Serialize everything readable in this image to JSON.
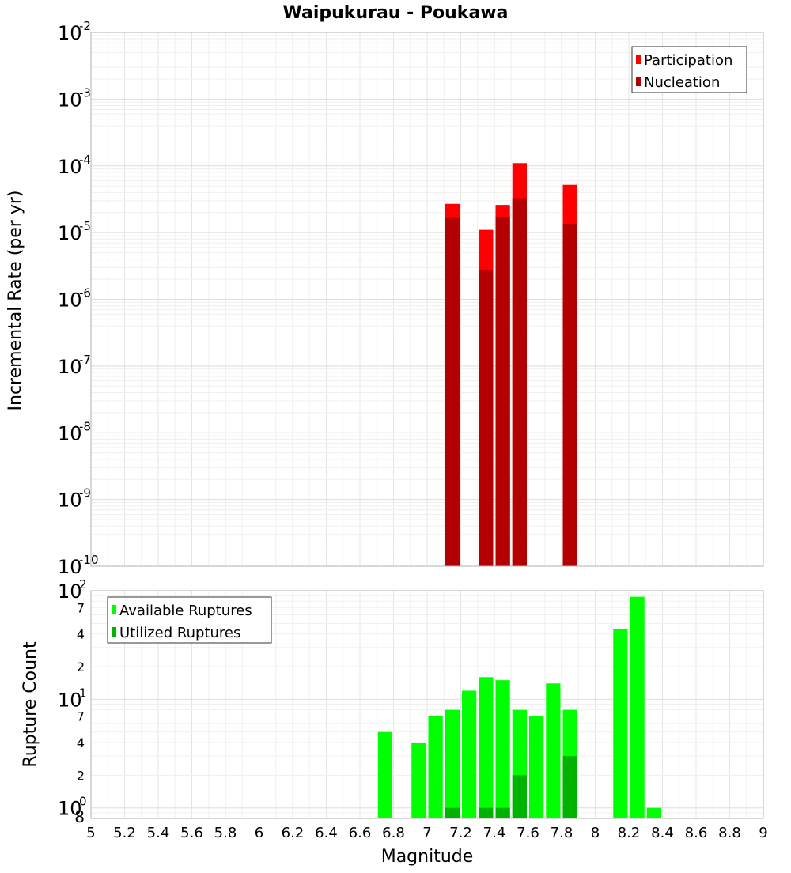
{
  "title": "Waipukurau - Poukawa",
  "xlabel": "Magnitude",
  "x_ticks": [
    "5",
    "5.2",
    "5.4",
    "5.6",
    "5.8",
    "6",
    "6.2",
    "6.4",
    "6.6",
    "6.8",
    "7",
    "7.2",
    "7.4",
    "7.6",
    "7.8",
    "8",
    "8.2",
    "8.4",
    "8.6",
    "8.8",
    "9"
  ],
  "chart_data": [
    {
      "type": "bar",
      "title": "Waipukurau - Poukawa",
      "xlabel": "Magnitude",
      "ylabel": "Incremental Rate (per yr)",
      "y_scale": "log",
      "xlim": [
        5,
        9
      ],
      "ylim": [
        1e-10,
        0.01
      ],
      "bin_width": 0.1,
      "y_tick_bases": [
        "10",
        "10",
        "10",
        "10",
        "10",
        "10",
        "10",
        "10",
        "10"
      ],
      "y_tick_exps": [
        "-2",
        "-3",
        "-4",
        "-5",
        "-6",
        "-7",
        "-8",
        "-9",
        "-10"
      ],
      "legend": {
        "position": "top-right"
      },
      "grid": true,
      "series": [
        {
          "name": "Participation",
          "color": "#ff0000",
          "points": [
            {
              "x": 7.15,
              "y": 2.7e-05
            },
            {
              "x": 7.35,
              "y": 1.1e-05
            },
            {
              "x": 7.45,
              "y": 2.6e-05
            },
            {
              "x": 7.55,
              "y": 0.00011
            },
            {
              "x": 7.85,
              "y": 5.2e-05
            }
          ]
        },
        {
          "name": "Nucleation",
          "color": "#b30000",
          "points": [
            {
              "x": 7.15,
              "y": 1.65e-05
            },
            {
              "x": 7.35,
              "y": 2.7e-06
            },
            {
              "x": 7.45,
              "y": 1.7e-05
            },
            {
              "x": 7.55,
              "y": 3.2e-05
            },
            {
              "x": 7.85,
              "y": 1.35e-05
            }
          ]
        }
      ]
    },
    {
      "type": "bar",
      "xlabel": "Magnitude",
      "ylabel": "Rupture Count",
      "y_scale": "log",
      "xlim": [
        5,
        9
      ],
      "ylim": [
        0.8,
        100
      ],
      "bin_width": 0.1,
      "y_major_ticks": [
        {
          "value": 100,
          "base": "10",
          "exp": "2"
        },
        {
          "value": 10,
          "base": "10",
          "exp": "1"
        },
        {
          "value": 1,
          "base": "10",
          "exp": "0"
        }
      ],
      "y_minor_ticks": [
        {
          "value": 70,
          "label": "7"
        },
        {
          "value": 40,
          "label": "4"
        },
        {
          "value": 20,
          "label": "2"
        },
        {
          "value": 7,
          "label": "7"
        },
        {
          "value": 4,
          "label": "4"
        },
        {
          "value": 2,
          "label": "2"
        },
        {
          "value": 0.8,
          "label": "8"
        }
      ],
      "legend": {
        "position": "top-left"
      },
      "grid": true,
      "series": [
        {
          "name": "Available Ruptures",
          "color": "#00ff00",
          "points": [
            {
              "x": 6.75,
              "y": 5
            },
            {
              "x": 6.95,
              "y": 4
            },
            {
              "x": 7.05,
              "y": 7
            },
            {
              "x": 7.15,
              "y": 8
            },
            {
              "x": 7.25,
              "y": 12
            },
            {
              "x": 7.35,
              "y": 16
            },
            {
              "x": 7.45,
              "y": 15
            },
            {
              "x": 7.55,
              "y": 8
            },
            {
              "x": 7.65,
              "y": 7
            },
            {
              "x": 7.75,
              "y": 14
            },
            {
              "x": 7.85,
              "y": 8
            },
            {
              "x": 8.15,
              "y": 44
            },
            {
              "x": 8.25,
              "y": 88
            },
            {
              "x": 8.35,
              "y": 1
            }
          ]
        },
        {
          "name": "Utilized Ruptures",
          "color": "#00b300",
          "points": [
            {
              "x": 7.15,
              "y": 1
            },
            {
              "x": 7.35,
              "y": 1
            },
            {
              "x": 7.45,
              "y": 1
            },
            {
              "x": 7.55,
              "y": 2
            },
            {
              "x": 7.85,
              "y": 3
            }
          ]
        }
      ]
    }
  ]
}
